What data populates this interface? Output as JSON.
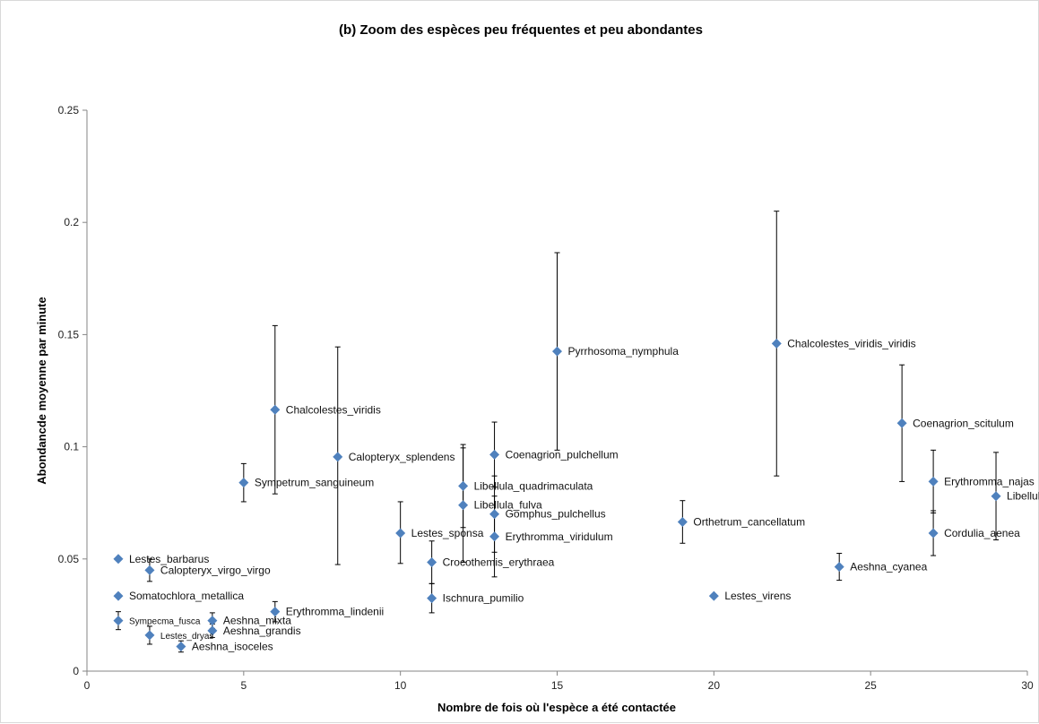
{
  "chart_data": {
    "type": "scatter",
    "title": "(b) Zoom des espèces peu fréquentes et peu abondantes",
    "xlabel": "Nombre de fois où l'espèce a été contactée",
    "ylabel": "Abondancde moyenne par minute",
    "xlim": [
      0,
      30
    ],
    "ylim": [
      0,
      0.25
    ],
    "xticks": [
      {
        "v": 0,
        "label": "0"
      },
      {
        "v": 5,
        "label": "5"
      },
      {
        "v": 10,
        "label": "10"
      },
      {
        "v": 15,
        "label": "15"
      },
      {
        "v": 20,
        "label": "20"
      },
      {
        "v": 25,
        "label": "25"
      },
      {
        "v": 30,
        "label": "30"
      }
    ],
    "yticks": [
      {
        "v": 0,
        "label": "0"
      },
      {
        "v": 0.05,
        "label": "0.05"
      },
      {
        "v": 0.1,
        "label": "0.1"
      },
      {
        "v": 0.15,
        "label": "0.15"
      },
      {
        "v": 0.2,
        "label": "0.2"
      },
      {
        "v": 0.25,
        "label": "0.25"
      }
    ],
    "grid": false,
    "legend": "none",
    "marker_color": "#4f81bd",
    "points": [
      {
        "name": "Lestes_barbarus",
        "x": 1,
        "y": 0.05,
        "err": null
      },
      {
        "name": "Somatochlora_metallica",
        "x": 1,
        "y": 0.0335,
        "err": null
      },
      {
        "name": "Sympecma_fusca",
        "x": 1,
        "y": 0.0225,
        "err": [
          0.0185,
          0.0265
        ],
        "small": true
      },
      {
        "name": "Calopteryx_virgo_virgo",
        "x": 2,
        "y": 0.045,
        "err": [
          0.04,
          0.05
        ]
      },
      {
        "name": "Lestes_dryas",
        "x": 2,
        "y": 0.016,
        "err": [
          0.012,
          0.02
        ],
        "small": true
      },
      {
        "name": "Aeshna_isoceles",
        "x": 3,
        "y": 0.011,
        "err": [
          0.0085,
          0.0135
        ]
      },
      {
        "name": "Aeshna_mixta",
        "x": 4,
        "y": 0.0225,
        "err": [
          0.019,
          0.026
        ]
      },
      {
        "name": "Aeshna_grandis",
        "x": 4,
        "y": 0.018,
        "err": [
          0.015,
          0.021
        ]
      },
      {
        "name": "Sympetrum_sanguineum",
        "x": 5,
        "y": 0.084,
        "err": [
          0.0755,
          0.0925
        ]
      },
      {
        "name": "Chalcolestes_viridis",
        "x": 6,
        "y": 0.1165,
        "err": [
          0.079,
          0.154
        ]
      },
      {
        "name": "Erythromma_lindenii",
        "x": 6,
        "y": 0.0265,
        "err": [
          0.022,
          0.031
        ]
      },
      {
        "name": "Calopteryx_splendens",
        "x": 8,
        "y": 0.0955,
        "err": [
          0.0475,
          0.1445
        ]
      },
      {
        "name": "Lestes_sponsa",
        "x": 10,
        "y": 0.0615,
        "err": [
          0.048,
          0.0755
        ]
      },
      {
        "name": "Crocothemis_erythraea",
        "x": 11,
        "y": 0.0485,
        "err": [
          0.039,
          0.058
        ]
      },
      {
        "name": "Ischnura_pumilio",
        "x": 11,
        "y": 0.0325,
        "err": [
          0.026,
          0.039
        ]
      },
      {
        "name": "Libellula_quadrimaculata",
        "x": 12,
        "y": 0.0825,
        "err": [
          0.064,
          0.101
        ]
      },
      {
        "name": "Libellula_fulva",
        "x": 12,
        "y": 0.074,
        "err": [
          0.0485,
          0.0995
        ]
      },
      {
        "name": "Coenagrion_pulchellum",
        "x": 13,
        "y": 0.0965,
        "err": [
          0.082,
          0.111
        ]
      },
      {
        "name": "Gomphus_pulchellus",
        "x": 13,
        "y": 0.07,
        "err": [
          0.053,
          0.087
        ]
      },
      {
        "name": "Erythromma_viridulum",
        "x": 13,
        "y": 0.06,
        "err": [
          0.042,
          0.078
        ]
      },
      {
        "name": "Pyrrhosoma_nymphula",
        "x": 15,
        "y": 0.1425,
        "err": [
          0.0985,
          0.1865
        ]
      },
      {
        "name": "Orthetrum_cancellatum",
        "x": 19,
        "y": 0.0665,
        "err": [
          0.057,
          0.076
        ]
      },
      {
        "name": "Lestes_virens",
        "x": 20,
        "y": 0.0335,
        "err": null
      },
      {
        "name": "Chalcolestes_viridis_viridis",
        "x": 22,
        "y": 0.146,
        "err": [
          0.087,
          0.205
        ]
      },
      {
        "name": "Aeshna_cyanea",
        "x": 24,
        "y": 0.0465,
        "err": [
          0.0405,
          0.0525
        ]
      },
      {
        "name": "Coenagrion_scitulum",
        "x": 26,
        "y": 0.1105,
        "err": [
          0.0845,
          0.1365
        ]
      },
      {
        "name": "Erythromma_najas",
        "x": 27,
        "y": 0.0845,
        "err": [
          0.0705,
          0.0985
        ]
      },
      {
        "name": "Cordulia_aenea",
        "x": 27,
        "y": 0.0615,
        "err": [
          0.0515,
          0.0715
        ]
      },
      {
        "name": "Libellula_depressa",
        "x": 29,
        "y": 0.078,
        "err": [
          0.0585,
          0.0975
        ]
      }
    ]
  }
}
